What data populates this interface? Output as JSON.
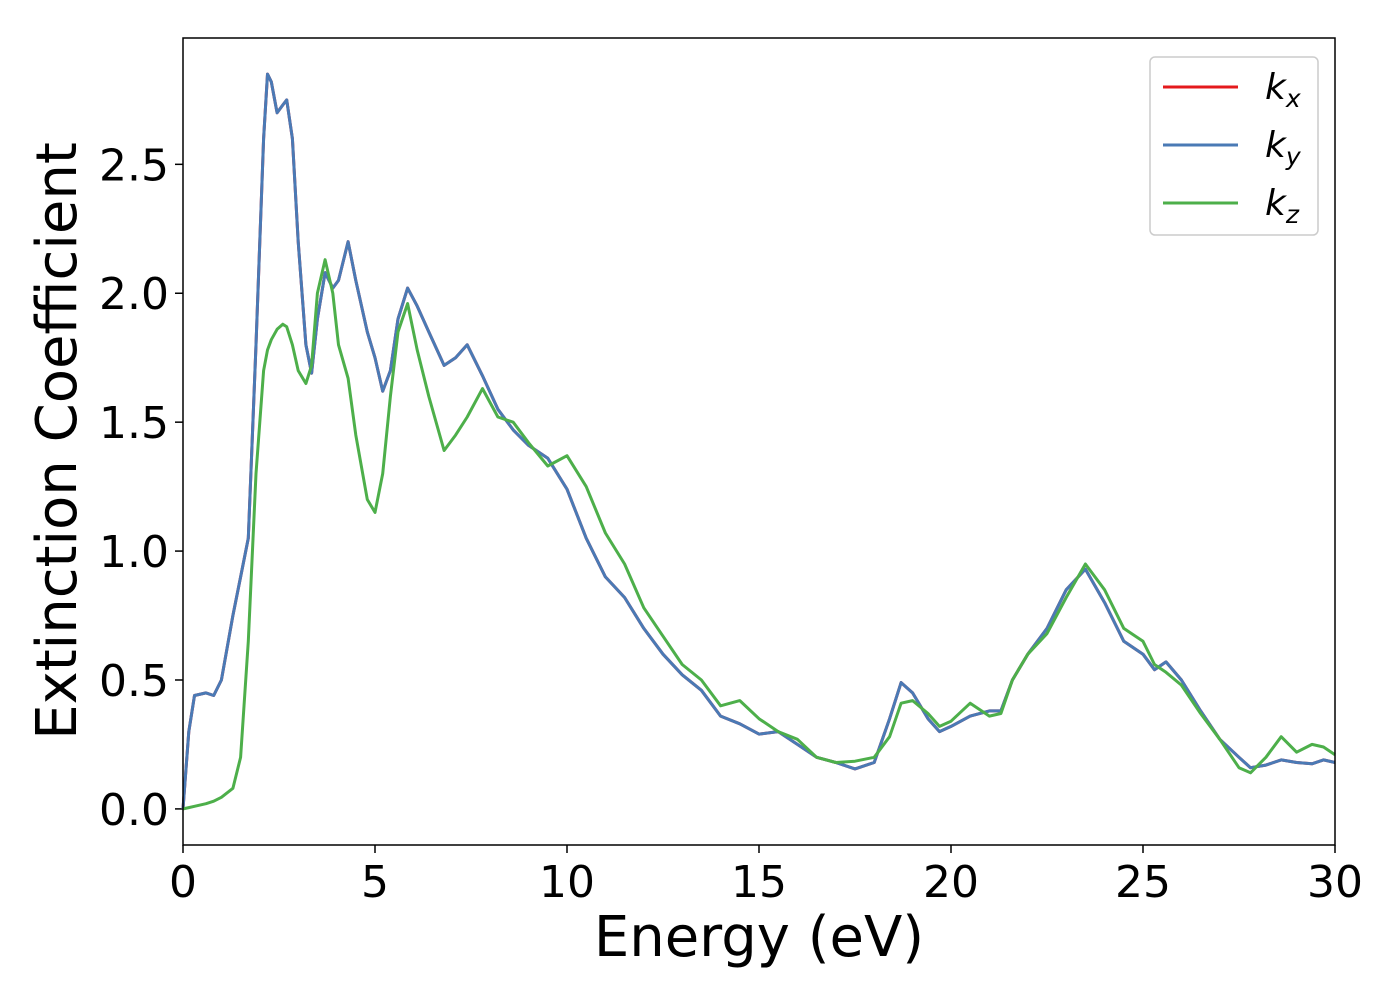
{
  "chart_data": {
    "type": "line",
    "xlabel": "Energy (eV)",
    "ylabel": "Extinction Coefficient",
    "x": [
      0,
      0.15,
      0.3,
      0.6,
      0.8,
      1.0,
      1.3,
      1.5,
      1.7,
      1.9,
      2.1,
      2.2,
      2.3,
      2.45,
      2.6,
      2.7,
      2.85,
      3.0,
      3.2,
      3.35,
      3.5,
      3.7,
      3.9,
      4.05,
      4.3,
      4.5,
      4.8,
      5.0,
      5.2,
      5.4,
      5.6,
      5.85,
      6.1,
      6.4,
      6.8,
      7.1,
      7.4,
      7.8,
      8.2,
      8.6,
      9.0,
      9.5,
      10.0,
      10.5,
      11.0,
      11.5,
      12.0,
      12.5,
      13.0,
      13.5,
      14.0,
      14.5,
      15.0,
      15.5,
      16.0,
      16.5,
      17.0,
      17.5,
      18.0,
      18.4,
      18.7,
      19.0,
      19.4,
      19.7,
      20.0,
      20.5,
      21.0,
      21.3,
      21.6,
      22.0,
      22.5,
      23.0,
      23.5,
      24.0,
      24.5,
      25.0,
      25.3,
      25.6,
      26.0,
      26.5,
      27.0,
      27.5,
      27.8,
      28.2,
      28.6,
      29.0,
      29.4,
      29.7,
      30.0
    ],
    "series": [
      {
        "name": "kx",
        "color": "#e41a1c",
        "values": [
          0.0,
          0.3,
          0.44,
          0.45,
          0.44,
          0.5,
          0.75,
          0.9,
          1.05,
          1.8,
          2.6,
          2.85,
          2.82,
          2.7,
          2.73,
          2.75,
          2.6,
          2.2,
          1.8,
          1.69,
          1.9,
          2.08,
          2.02,
          2.05,
          2.2,
          2.05,
          1.85,
          1.75,
          1.62,
          1.7,
          1.9,
          2.02,
          1.95,
          1.85,
          1.72,
          1.75,
          1.8,
          1.68,
          1.55,
          1.47,
          1.41,
          1.36,
          1.24,
          1.05,
          0.9,
          0.82,
          0.7,
          0.6,
          0.52,
          0.46,
          0.36,
          0.33,
          0.29,
          0.3,
          0.25,
          0.2,
          0.18,
          0.155,
          0.18,
          0.35,
          0.49,
          0.45,
          0.35,
          0.3,
          0.32,
          0.36,
          0.38,
          0.38,
          0.5,
          0.6,
          0.7,
          0.85,
          0.93,
          0.8,
          0.65,
          0.6,
          0.54,
          0.57,
          0.5,
          0.38,
          0.27,
          0.2,
          0.16,
          0.17,
          0.19,
          0.18,
          0.175,
          0.19,
          0.18
        ]
      },
      {
        "name": "ky",
        "color": "#4a7ab5",
        "values": [
          0.0,
          0.3,
          0.44,
          0.45,
          0.44,
          0.5,
          0.75,
          0.9,
          1.05,
          1.8,
          2.6,
          2.85,
          2.82,
          2.7,
          2.73,
          2.75,
          2.6,
          2.2,
          1.8,
          1.69,
          1.9,
          2.08,
          2.02,
          2.05,
          2.2,
          2.05,
          1.85,
          1.75,
          1.62,
          1.7,
          1.9,
          2.02,
          1.95,
          1.85,
          1.72,
          1.75,
          1.8,
          1.68,
          1.55,
          1.47,
          1.41,
          1.36,
          1.24,
          1.05,
          0.9,
          0.82,
          0.7,
          0.6,
          0.52,
          0.46,
          0.36,
          0.33,
          0.29,
          0.3,
          0.25,
          0.2,
          0.18,
          0.155,
          0.18,
          0.35,
          0.49,
          0.45,
          0.35,
          0.3,
          0.32,
          0.36,
          0.38,
          0.38,
          0.5,
          0.6,
          0.7,
          0.85,
          0.93,
          0.8,
          0.65,
          0.6,
          0.54,
          0.57,
          0.5,
          0.38,
          0.27,
          0.2,
          0.16,
          0.17,
          0.19,
          0.18,
          0.175,
          0.19,
          0.18
        ]
      },
      {
        "name": "kz",
        "color": "#4daf4a",
        "values": [
          0.0,
          0.005,
          0.01,
          0.02,
          0.03,
          0.045,
          0.08,
          0.2,
          0.65,
          1.3,
          1.7,
          1.78,
          1.82,
          1.86,
          1.88,
          1.87,
          1.8,
          1.7,
          1.65,
          1.72,
          2.0,
          2.13,
          2.0,
          1.8,
          1.67,
          1.45,
          1.2,
          1.15,
          1.3,
          1.6,
          1.85,
          1.96,
          1.78,
          1.6,
          1.39,
          1.45,
          1.52,
          1.63,
          1.52,
          1.5,
          1.42,
          1.33,
          1.37,
          1.25,
          1.07,
          0.95,
          0.78,
          0.67,
          0.56,
          0.5,
          0.4,
          0.42,
          0.35,
          0.3,
          0.27,
          0.2,
          0.18,
          0.185,
          0.2,
          0.28,
          0.41,
          0.42,
          0.37,
          0.32,
          0.34,
          0.41,
          0.36,
          0.37,
          0.5,
          0.6,
          0.68,
          0.82,
          0.95,
          0.85,
          0.7,
          0.65,
          0.56,
          0.53,
          0.48,
          0.37,
          0.27,
          0.16,
          0.14,
          0.2,
          0.28,
          0.22,
          0.25,
          0.24,
          0.21
        ]
      }
    ],
    "xlim": [
      0,
      30
    ],
    "xticks": [
      0,
      5,
      10,
      15,
      20,
      25,
      30
    ],
    "ylim": [
      -0.14,
      2.99
    ],
    "yticks": [
      {
        "value": 0,
        "label": "0.0"
      },
      0.5,
      {
        "value": 1,
        "label": "1.0"
      },
      1.5,
      {
        "value": 2,
        "label": "2.0"
      },
      2.5
    ],
    "legend": "upper right",
    "grid": false
  }
}
